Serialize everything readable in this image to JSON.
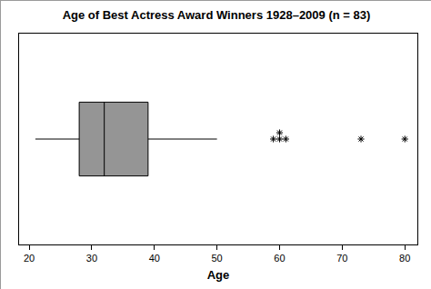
{
  "chart_data": {
    "type": "box",
    "title": "Age of Best Actress Award Winners 1928–2009 (n = 83)",
    "x_label": "Age",
    "orientation": "horizontal",
    "stats": {
      "min": 21,
      "q1": 28,
      "median": 32,
      "q3": 39,
      "max": 50
    },
    "outliers": [
      59,
      60,
      60,
      61,
      73,
      80
    ],
    "color": "#959595",
    "marker": "asterisk",
    "xlim": [
      18.4,
      82
    ],
    "xticks": [
      20,
      30,
      40,
      50,
      60,
      70,
      80
    ],
    "grid": false,
    "tick_labels": "x"
  }
}
